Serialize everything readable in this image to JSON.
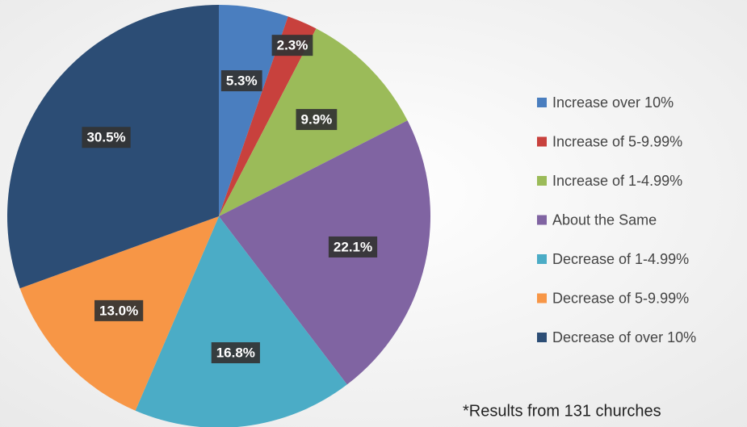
{
  "chart_data": {
    "type": "pie",
    "categories": [
      "Increase over 10%",
      "Increase of  5-9.99%",
      "Increase  of 1-4.99%",
      "About the Same",
      "Decrease of 1-4.99%",
      "Decrease of 5-9.99%",
      "Decrease of over 10%"
    ],
    "values": [
      5.3,
      2.3,
      9.9,
      22.1,
      16.8,
      13.0,
      30.5
    ],
    "value_labels": [
      "5.3%",
      "2.3%",
      "9.9%",
      "22.1%",
      "16.8%",
      "13.0%",
      "30.5%"
    ],
    "colors": [
      "#4a7ebf",
      "#c8413d",
      "#9bbb59",
      "#8064a2",
      "#4bacc6",
      "#f79646",
      "#2c4d75"
    ],
    "legend": "right",
    "annotation": "*Results from 131 churches"
  }
}
